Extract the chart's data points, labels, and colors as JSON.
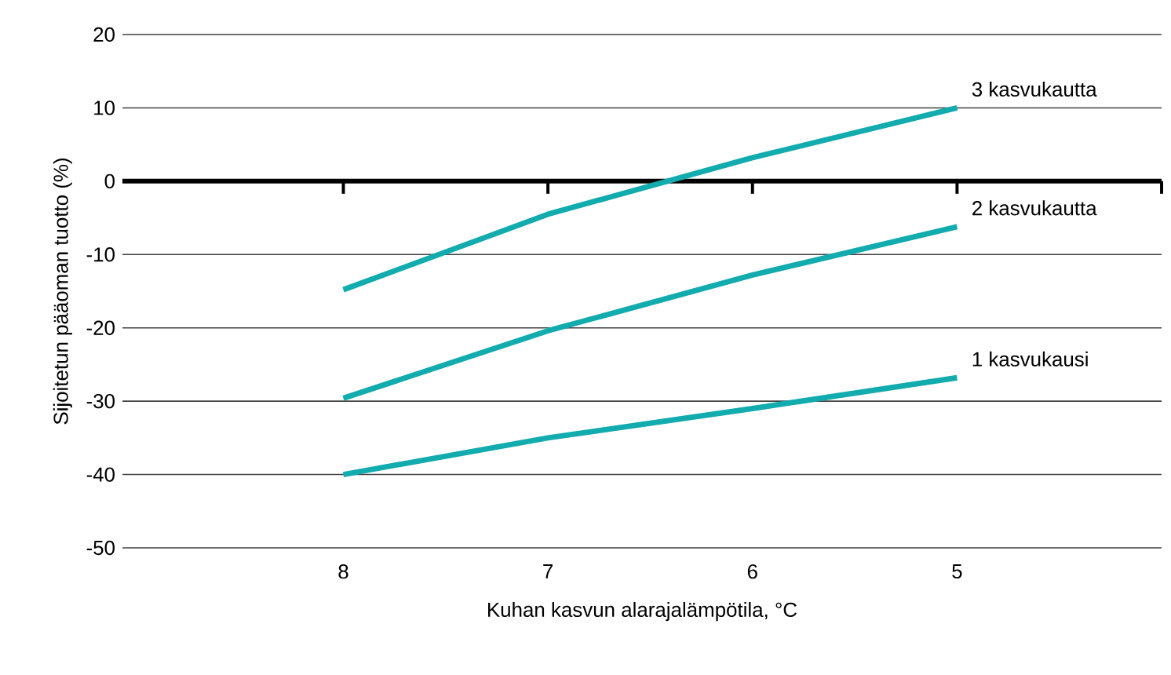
{
  "chart_data": {
    "type": "line",
    "xlabel": "Kuhan kasvun alarajalämpötila, °C",
    "ylabel": "Sijoitetun pääoman tuotto (%)",
    "categories": [
      "8",
      "7",
      "6",
      "5"
    ],
    "series": [
      {
        "name": "3 kasvukautta",
        "color": "#12abae",
        "values": [
          -14.8,
          -4.5,
          3.2,
          10
        ]
      },
      {
        "name": "2 kasvukautta",
        "color": "#12abae",
        "values": [
          -29.6,
          -20.4,
          -12.8,
          -6.2
        ]
      },
      {
        "name": "1 kasvukausi",
        "color": "#12abae",
        "values": [
          -40,
          -35,
          -31,
          -26.8
        ]
      }
    ],
    "ylim": [
      -50,
      20
    ],
    "yticks": [
      -50,
      -40,
      -30,
      -20,
      -10,
      0,
      10,
      20
    ],
    "grid": "y",
    "marker": "none",
    "line_style": "solid",
    "ref_lines": [
      {
        "axis": "y",
        "value": 0,
        "color": "#000000"
      }
    ]
  }
}
